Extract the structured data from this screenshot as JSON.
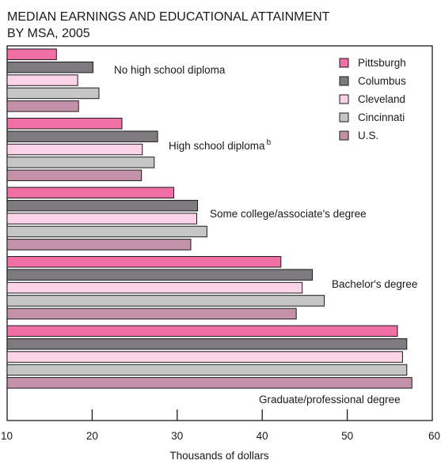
{
  "chart_data": {
    "type": "bar",
    "orientation": "horizontal",
    "title_lines": [
      "MEDIAN EARNINGS AND EDUCATIONAL ATTAINMENT",
      "BY MSA, 2005"
    ],
    "xlabel": "Thousands of dollars",
    "xlim": [
      10,
      60
    ],
    "x_ticks": [
      "10",
      "20",
      "30",
      "40",
      "50",
      "60"
    ],
    "grid": false,
    "legend_position": "top-right",
    "categories": [
      "No high school diploma",
      "High school diploma",
      "Some college/associate's degree",
      "Bachelor's degree",
      "Graduate/professional degree"
    ],
    "category_superscripts": [
      "",
      "b",
      "",
      "",
      ""
    ],
    "series": [
      {
        "name": "Pittsburgh",
        "color": "#ef6fa6",
        "values": [
          15.8,
          23.5,
          29.6,
          42.2,
          55.9
        ]
      },
      {
        "name": "Columbus",
        "color": "#7d7b7f",
        "values": [
          20.1,
          27.7,
          32.4,
          45.9,
          57.0
        ]
      },
      {
        "name": "Cleveland",
        "color": "#fbd3e6",
        "values": [
          18.3,
          25.9,
          32.3,
          44.7,
          56.5
        ]
      },
      {
        "name": "Cincinnati",
        "color": "#c6c6c6",
        "values": [
          20.8,
          27.3,
          33.5,
          47.3,
          57.0
        ]
      },
      {
        "name": "U.S.",
        "color": "#c392a9",
        "values": [
          18.4,
          25.8,
          31.6,
          44.0,
          57.6
        ]
      }
    ]
  }
}
